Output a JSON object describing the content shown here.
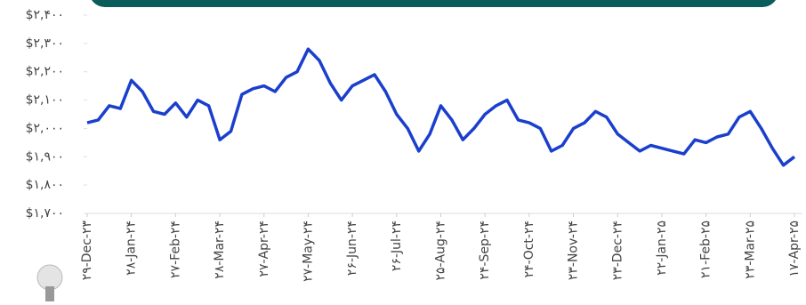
{
  "chart_data": {
    "type": "line",
    "categories": [
      "۲۹-Dec-۲۳",
      null,
      null,
      null,
      "۲۸-Jan-۲۴",
      null,
      null,
      null,
      "۲۷-Feb-۲۴",
      null,
      null,
      null,
      "۲۸-Mar-۲۴",
      null,
      null,
      null,
      "۲۷-Apr-۲۴",
      null,
      null,
      null,
      "۲۷-May-۲۴",
      null,
      null,
      null,
      "۲۶-Jun-۲۴",
      null,
      null,
      null,
      "۲۶-Jul-۲۴",
      null,
      null,
      null,
      "۲۵-Aug-۲۴",
      null,
      null,
      null,
      "۲۴-Sep-۲۴",
      null,
      null,
      null,
      "۲۴-Oct-۲۴",
      null,
      null,
      null,
      "۲۳-Nov-۲۴",
      null,
      null,
      null,
      "۲۳-Dec-۲۴",
      null,
      null,
      null,
      "۲۲-Jan-۲۵",
      null,
      null,
      null,
      "۲۱-Feb-۲۵",
      null,
      null,
      null,
      "۲۳-Mar-۲۵",
      null,
      null,
      null,
      "۱۷-Apr-۲۵"
    ],
    "series": [
      {
        "color": "#1a3fcc",
        "values": [
          2020,
          2030,
          2080,
          2070,
          2170,
          2130,
          2060,
          2050,
          2090,
          2040,
          2100,
          2080,
          1960,
          1990,
          2120,
          2140,
          2150,
          2130,
          2180,
          2200,
          2280,
          2240,
          2160,
          2100,
          2150,
          2170,
          2190,
          2130,
          2050,
          2000,
          1920,
          1980,
          2080,
          2030,
          1960,
          2000,
          2050,
          2080,
          2100,
          2030,
          2020,
          2000,
          1920,
          1940,
          2000,
          2020,
          2060,
          2040,
          1980,
          1950,
          1920,
          1940,
          1930,
          1920,
          1910,
          1960,
          1950,
          1970,
          1980,
          2040,
          2060,
          2000,
          1930,
          1870,
          1900
        ]
      }
    ],
    "ylim": [
      1700,
      2400
    ],
    "yticks": [
      {
        "value": 1700,
        "label": "$۱,۷۰۰"
      },
      {
        "value": 1800,
        "label": "$۱,۸۰۰"
      },
      {
        "value": 1900,
        "label": "$۱,۹۰۰"
      },
      {
        "value": 2000,
        "label": "$۲,۰۰۰"
      },
      {
        "value": 2100,
        "label": "$۲,۱۰۰"
      },
      {
        "value": 2200,
        "label": "$۲,۲۰۰"
      },
      {
        "value": 2300,
        "label": "$۲,۳۰۰"
      },
      {
        "value": 2400,
        "label": "$۲,۴۰۰"
      }
    ]
  }
}
